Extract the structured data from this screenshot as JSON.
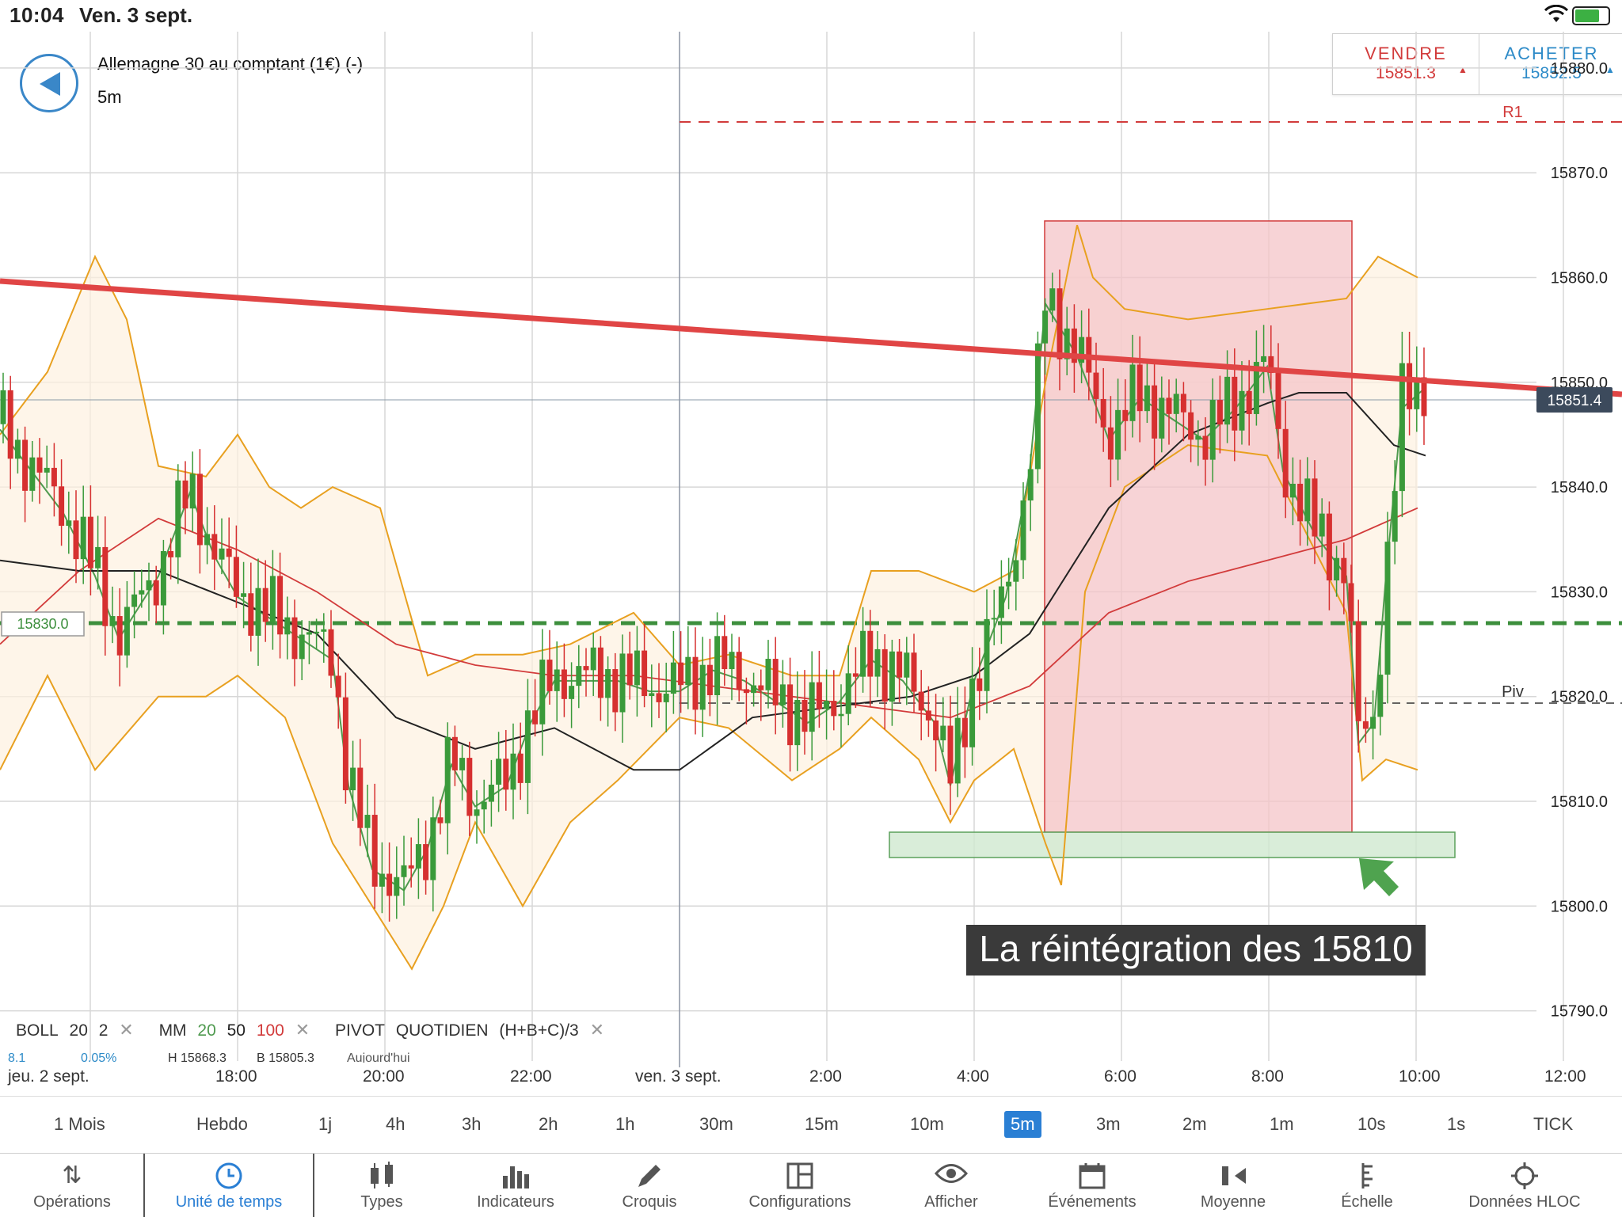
{
  "status": {
    "time": "10:04",
    "date": "Ven. 3 sept."
  },
  "instrument": {
    "title": "Allemagne 30 au comptant (1€) (-)",
    "timeframe": "5m"
  },
  "trade": {
    "sell_label": "VENDRE",
    "sell_price": "15851.3",
    "buy_label": "ACHETER",
    "buy_price": "15852.5"
  },
  "chart": {
    "y_ticks": [
      "15880.0",
      "15870.0",
      "15860.0",
      "15850.0",
      "15840.0",
      "15830.0",
      "15820.0",
      "15810.0",
      "15800.0",
      "15790.0"
    ],
    "current_price": "15851.4",
    "green_line_label": "15830.0",
    "r1_label": "R1",
    "piv_label": "Piv",
    "annotation": "La réintégration des 15810"
  },
  "indicators": {
    "boll": "BOLL",
    "boll_p1": "20",
    "boll_p2": "2",
    "mm": "MM",
    "mm_p1": "20",
    "mm_p2": "50",
    "mm_p3": "100",
    "pivot": "PIVOT",
    "pivot_type": "QUOTIDIEN",
    "pivot_formula": "(H+B+C)/3",
    "sub1": "8.1",
    "sub2": "0.05%",
    "sub3": "H 15868.3",
    "sub4": "B 15805.3",
    "sub5": "Aujourd'hui"
  },
  "timeline": [
    "jeu. 2 sept.",
    "18:00",
    "20:00",
    "22:00",
    "ven. 3 sept.",
    "2:00",
    "4:00",
    "6:00",
    "8:00",
    "10:00",
    "12:00"
  ],
  "timeframes": [
    "1 Mois",
    "Hebdo",
    "1j",
    "4h",
    "3h",
    "2h",
    "1h",
    "30m",
    "15m",
    "10m",
    "5m",
    "3m",
    "2m",
    "1m",
    "10s",
    "1s",
    "TICK"
  ],
  "active_timeframe": "5m",
  "nav": [
    "Opérations",
    "Unité de temps",
    "Types",
    "Indicateurs",
    "Croquis",
    "Configurations",
    "Afficher",
    "Événements",
    "Moyenne",
    "Échelle",
    "Données HLOC"
  ],
  "colors": {
    "accent": "#2a7fd4",
    "sell": "#d23b3b",
    "buy": "#2e8bc8",
    "bull": "#3a9a3a",
    "bear": "#d63030"
  }
}
